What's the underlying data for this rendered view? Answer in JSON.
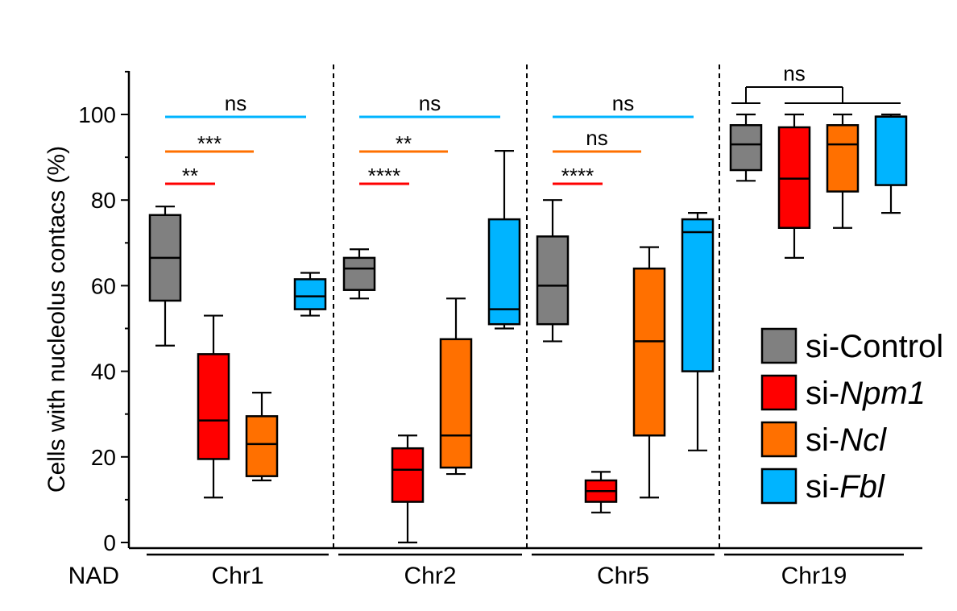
{
  "chart_data": {
    "type": "box",
    "ylabel": "Cells with nucleolus contacs (%)",
    "ylim": [
      0,
      110
    ],
    "yticks": [
      0,
      20,
      40,
      60,
      80,
      100
    ],
    "xlabel_prefix": "NAD",
    "legend_position": "right",
    "series": [
      {
        "name": "si-Control",
        "prefix": "si-",
        "gene": "Control",
        "gene_italic": false,
        "color": "#808080"
      },
      {
        "name": "si-Npm1",
        "prefix": "si-",
        "gene": "Npm1",
        "gene_italic": true,
        "color": "#ff0000"
      },
      {
        "name": "si-Ncl",
        "prefix": "si-",
        "gene": "Ncl",
        "gene_italic": true,
        "color": "#ff7000"
      },
      {
        "name": "si-Fbl",
        "prefix": "si-",
        "gene": "Fbl",
        "gene_italic": true,
        "color": "#00b4ff"
      }
    ],
    "groups": [
      {
        "label": "Chr1",
        "boxes": [
          {
            "series": "si-Control",
            "min": 46,
            "q1": 56.5,
            "median": 66.5,
            "q3": 76.5,
            "max": 78.5
          },
          {
            "series": "si-Npm1",
            "min": 10.5,
            "q1": 19.5,
            "median": 28.5,
            "q3": 44,
            "max": 53
          },
          {
            "series": "si-Ncl",
            "min": 14.5,
            "q1": 15.5,
            "median": 23,
            "q3": 29.5,
            "max": 35
          },
          {
            "series": "si-Fbl",
            "min": 53,
            "q1": 54.5,
            "median": 57.5,
            "q3": 61.5,
            "max": 63
          }
        ],
        "comparisons": [
          {
            "vs": "si-Npm1",
            "label": "**"
          },
          {
            "vs": "si-Ncl",
            "label": "***"
          },
          {
            "vs": "si-Fbl",
            "label": "ns"
          }
        ]
      },
      {
        "label": "Chr2",
        "boxes": [
          {
            "series": "si-Control",
            "min": 57,
            "q1": 59,
            "median": 64,
            "q3": 66.5,
            "max": 68.5
          },
          {
            "series": "si-Npm1",
            "min": 0,
            "q1": 9.5,
            "median": 17,
            "q3": 22,
            "max": 25
          },
          {
            "series": "si-Ncl",
            "min": 16,
            "q1": 17.5,
            "median": 25,
            "q3": 47.5,
            "max": 57
          },
          {
            "series": "si-Fbl",
            "min": 50,
            "q1": 51,
            "median": 54.5,
            "q3": 75.5,
            "max": 91.5
          }
        ],
        "comparisons": [
          {
            "vs": "si-Npm1",
            "label": "****"
          },
          {
            "vs": "si-Ncl",
            "label": "**"
          },
          {
            "vs": "si-Fbl",
            "label": "ns"
          }
        ]
      },
      {
        "label": "Chr5",
        "boxes": [
          {
            "series": "si-Control",
            "min": 47,
            "q1": 51,
            "median": 60,
            "q3": 71.5,
            "max": 80
          },
          {
            "series": "si-Npm1",
            "min": 7,
            "q1": 9.5,
            "median": 12,
            "q3": 14.5,
            "max": 16.5
          },
          {
            "series": "si-Ncl",
            "min": 10.5,
            "q1": 25,
            "median": 47,
            "q3": 64,
            "max": 69
          },
          {
            "series": "si-Fbl",
            "min": 21.5,
            "q1": 40,
            "median": 72.5,
            "q3": 75.5,
            "max": 77
          }
        ],
        "comparisons": [
          {
            "vs": "si-Npm1",
            "label": "****"
          },
          {
            "vs": "si-Ncl",
            "label": "ns"
          },
          {
            "vs": "si-Fbl",
            "label": "ns"
          }
        ]
      },
      {
        "label": "Chr19",
        "boxes": [
          {
            "series": "si-Control",
            "min": 84.5,
            "q1": 87,
            "median": 93,
            "q3": 97.5,
            "max": 100
          },
          {
            "series": "si-Npm1",
            "min": 66.5,
            "q1": 73.5,
            "median": 85,
            "q3": 97,
            "max": 100
          },
          {
            "series": "si-Ncl",
            "min": 73.5,
            "q1": 82,
            "median": 93,
            "q3": 97.5,
            "max": 100
          },
          {
            "series": "si-Fbl",
            "min": 77,
            "q1": 83.5,
            "median": 99.5,
            "q3": 99.5,
            "max": 100
          }
        ],
        "comparisons": [
          {
            "vs": "si-Npm1, si-Ncl, si-Fbl",
            "label": "ns",
            "style": "bracket"
          }
        ]
      }
    ]
  }
}
